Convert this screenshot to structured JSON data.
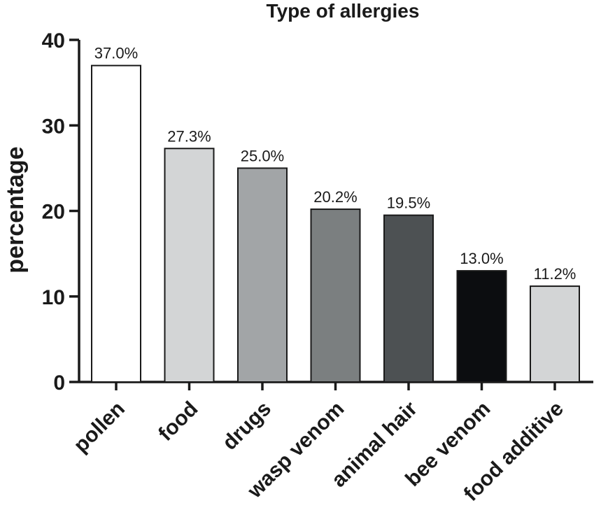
{
  "chart_data": {
    "type": "bar",
    "title": "Type of allergies",
    "xlabel": "",
    "ylabel": "percentage",
    "ylim": [
      0,
      40
    ],
    "yticks": [
      "0",
      "10",
      "20",
      "30",
      "40"
    ],
    "categories": [
      "pollen",
      "food",
      "drugs",
      "wasp venom",
      "animal hair",
      "bee venom",
      "food additive"
    ],
    "values": [
      37.0,
      27.3,
      25.0,
      20.2,
      19.5,
      13.0,
      11.2
    ],
    "data_labels": [
      "37.0%",
      "27.3%",
      "25.0%",
      "20.2%",
      "19.5%",
      "13.0%",
      "11.2%"
    ],
    "bar_colors": [
      "#ffffff",
      "#d3d5d6",
      "#a2a5a7",
      "#7b7f80",
      "#4d5153",
      "#0c0d10",
      "#d3d5d6"
    ],
    "grid": false,
    "legend": "none"
  }
}
